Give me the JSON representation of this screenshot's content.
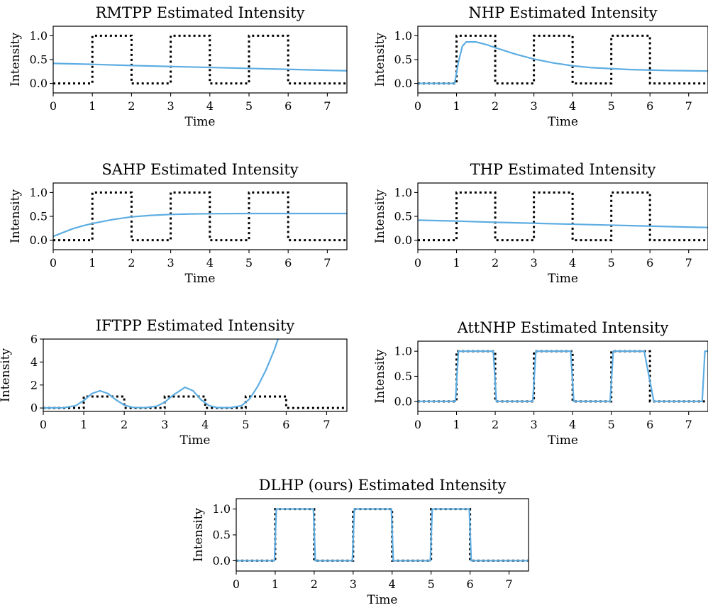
{
  "chart_data": [
    {
      "type": "line",
      "title": "RMTPP Estimated Intensity",
      "xlabel": "Time",
      "ylabel": "Intensity",
      "xlim": [
        0,
        7.5
      ],
      "ylim": [
        -0.2,
        1.2
      ],
      "xticks": [
        0,
        1,
        2,
        3,
        4,
        5,
        6,
        7
      ],
      "yticks": [
        0.0,
        0.5,
        1.0
      ],
      "ytick_labels": [
        "0.0",
        "0.5",
        "1.0"
      ],
      "grid": false,
      "series": [
        {
          "role": "ground-truth",
          "style": "dotted",
          "color": "#000000",
          "x": [
            0,
            1,
            1,
            2,
            2,
            3,
            3,
            4,
            4,
            5,
            5,
            6,
            6,
            7.5
          ],
          "y": [
            0,
            0,
            1,
            1,
            0,
            0,
            1,
            1,
            0,
            0,
            1,
            1,
            0,
            0
          ]
        },
        {
          "role": "estimated",
          "style": "solid",
          "color": "#5dade2",
          "x": [
            0,
            1,
            2,
            3,
            4,
            5,
            6,
            7,
            7.5
          ],
          "y": [
            0.42,
            0.4,
            0.375,
            0.355,
            0.335,
            0.315,
            0.295,
            0.275,
            0.265
          ]
        }
      ]
    },
    {
      "type": "line",
      "title": "NHP Estimated Intensity",
      "xlabel": "Time",
      "ylabel": "Intensity",
      "xlim": [
        0,
        7.5
      ],
      "ylim": [
        -0.2,
        1.2
      ],
      "xticks": [
        0,
        1,
        2,
        3,
        4,
        5,
        6,
        7
      ],
      "yticks": [
        0.0,
        0.5,
        1.0
      ],
      "ytick_labels": [
        "0.0",
        "0.5",
        "1.0"
      ],
      "grid": false,
      "series": [
        {
          "role": "ground-truth",
          "style": "dotted",
          "color": "#000000",
          "x": [
            0,
            1,
            1,
            2,
            2,
            3,
            3,
            4,
            4,
            5,
            5,
            6,
            6,
            7.5
          ],
          "y": [
            0,
            0,
            1,
            1,
            0,
            0,
            1,
            1,
            0,
            0,
            1,
            1,
            0,
            0
          ]
        },
        {
          "role": "estimated",
          "style": "solid",
          "color": "#5dade2",
          "x": [
            0,
            0.95,
            1.05,
            1.15,
            1.25,
            1.5,
            1.75,
            2.0,
            2.5,
            3.0,
            3.5,
            4.0,
            4.5,
            5.0,
            5.5,
            6.0,
            6.5,
            7.0,
            7.5
          ],
          "y": [
            0,
            0,
            0.45,
            0.78,
            0.87,
            0.87,
            0.82,
            0.75,
            0.62,
            0.51,
            0.43,
            0.37,
            0.33,
            0.31,
            0.29,
            0.28,
            0.27,
            0.265,
            0.26
          ]
        }
      ]
    },
    {
      "type": "line",
      "title": "SAHP Estimated Intensity",
      "xlabel": "Time",
      "ylabel": "Intensity",
      "xlim": [
        0,
        7.5
      ],
      "ylim": [
        -0.2,
        1.2
      ],
      "xticks": [
        0,
        1,
        2,
        3,
        4,
        5,
        6,
        7
      ],
      "yticks": [
        0.0,
        0.5,
        1.0
      ],
      "ytick_labels": [
        "0.0",
        "0.5",
        "1.0"
      ],
      "grid": false,
      "series": [
        {
          "role": "ground-truth",
          "style": "dotted",
          "color": "#000000",
          "x": [
            0,
            1,
            1,
            2,
            2,
            3,
            3,
            4,
            4,
            5,
            5,
            6,
            6,
            7.5
          ],
          "y": [
            0,
            0,
            1,
            1,
            0,
            0,
            1,
            1,
            0,
            0,
            1,
            1,
            0,
            0
          ]
        },
        {
          "role": "estimated",
          "style": "solid",
          "color": "#5dade2",
          "x": [
            0,
            0.25,
            0.5,
            0.75,
            1.0,
            1.5,
            2.0,
            2.5,
            3.0,
            3.5,
            4.0,
            5.0,
            6.0,
            7.0,
            7.5
          ],
          "y": [
            0.08,
            0.16,
            0.24,
            0.3,
            0.35,
            0.43,
            0.49,
            0.52,
            0.54,
            0.55,
            0.555,
            0.56,
            0.56,
            0.56,
            0.56
          ]
        }
      ]
    },
    {
      "type": "line",
      "title": "THP Estimated Intensity",
      "xlabel": "Time",
      "ylabel": "Intensity",
      "xlim": [
        0,
        7.5
      ],
      "ylim": [
        -0.2,
        1.2
      ],
      "xticks": [
        0,
        1,
        2,
        3,
        4,
        5,
        6,
        7
      ],
      "yticks": [
        0.0,
        0.5,
        1.0
      ],
      "ytick_labels": [
        "0.0",
        "0.5",
        "1.0"
      ],
      "grid": false,
      "series": [
        {
          "role": "ground-truth",
          "style": "dotted",
          "color": "#000000",
          "x": [
            0,
            1,
            1,
            2,
            2,
            3,
            3,
            4,
            4,
            5,
            5,
            6,
            6,
            7.5
          ],
          "y": [
            0,
            0,
            1,
            1,
            0,
            0,
            1,
            1,
            0,
            0,
            1,
            1,
            0,
            0
          ]
        },
        {
          "role": "estimated",
          "style": "solid",
          "color": "#5dade2",
          "x": [
            0,
            1,
            2,
            3,
            4,
            5,
            6,
            7,
            7.5
          ],
          "y": [
            0.42,
            0.4,
            0.375,
            0.355,
            0.335,
            0.315,
            0.295,
            0.275,
            0.265
          ]
        }
      ]
    },
    {
      "type": "line",
      "title": "IFTPP Estimated Intensity",
      "xlabel": "Time",
      "ylabel": "Intensity",
      "xlim": [
        0,
        7.5
      ],
      "ylim": [
        -0.3,
        6
      ],
      "xticks": [
        0,
        1,
        2,
        3,
        4,
        5,
        6,
        7
      ],
      "yticks": [
        0,
        2,
        4,
        6
      ],
      "ytick_labels": [
        "0",
        "2",
        "4",
        "6"
      ],
      "grid": false,
      "series": [
        {
          "role": "ground-truth",
          "style": "dotted",
          "color": "#000000",
          "x": [
            0,
            1,
            1,
            2,
            2,
            3,
            3,
            4,
            4,
            5,
            5,
            6,
            6,
            7.5
          ],
          "y": [
            0,
            0,
            1,
            1,
            0,
            0,
            1,
            1,
            0,
            0,
            1,
            1,
            0,
            0
          ]
        },
        {
          "role": "estimated",
          "style": "solid",
          "color": "#5dade2",
          "x": [
            0,
            0.5,
            0.8,
            1.0,
            1.2,
            1.4,
            1.6,
            1.8,
            2.0,
            2.2,
            2.5,
            2.8,
            3.0,
            3.2,
            3.5,
            3.7,
            3.9,
            4.1,
            4.3,
            4.6,
            4.9,
            5.1,
            5.3,
            5.5,
            5.7,
            5.8
          ],
          "y": [
            0,
            0.02,
            0.2,
            0.65,
            1.25,
            1.5,
            1.25,
            0.7,
            0.25,
            0.05,
            0.02,
            0.15,
            0.5,
            1.1,
            1.8,
            1.5,
            0.7,
            0.2,
            0.03,
            0.02,
            0.2,
            0.8,
            1.9,
            3.3,
            5.0,
            6.0
          ]
        }
      ]
    },
    {
      "type": "line",
      "title": "AttNHP Estimated Intensity",
      "xlabel": "Time",
      "ylabel": "Intensity",
      "xlim": [
        0,
        7.5
      ],
      "ylim": [
        -0.2,
        1.2
      ],
      "xticks": [
        0,
        1,
        2,
        3,
        4,
        5,
        6,
        7
      ],
      "yticks": [
        0.0,
        0.5,
        1.0
      ],
      "ytick_labels": [
        "0.0",
        "0.5",
        "1.0"
      ],
      "grid": false,
      "series": [
        {
          "role": "ground-truth",
          "style": "dotted",
          "color": "#000000",
          "x": [
            0,
            1,
            1,
            2,
            2,
            3,
            3,
            4,
            4,
            5,
            5,
            6,
            6,
            7.5
          ],
          "y": [
            0,
            0,
            1,
            1,
            0,
            0,
            1,
            1,
            0,
            0,
            1,
            1,
            0,
            0
          ]
        },
        {
          "role": "estimated",
          "style": "solid",
          "color": "#5dade2",
          "x": [
            0,
            0.97,
            1.05,
            1.95,
            2.03,
            2.97,
            3.05,
            3.95,
            4.03,
            4.97,
            5.05,
            5.85,
            6.1,
            7.35,
            7.42,
            7.5
          ],
          "y": [
            0,
            0,
            1,
            1,
            0,
            0,
            1,
            1,
            0,
            0,
            1,
            1,
            0,
            0,
            1,
            1
          ]
        }
      ]
    },
    {
      "type": "line",
      "title": "DLHP (ours) Estimated Intensity",
      "xlabel": "Time",
      "ylabel": "Intensity",
      "xlim": [
        0,
        7.5
      ],
      "ylim": [
        -0.2,
        1.2
      ],
      "xticks": [
        0,
        1,
        2,
        3,
        4,
        5,
        6,
        7
      ],
      "yticks": [
        0.0,
        0.5,
        1.0
      ],
      "ytick_labels": [
        "0.0",
        "0.5",
        "1.0"
      ],
      "grid": false,
      "series": [
        {
          "role": "ground-truth",
          "style": "dotted",
          "color": "#000000",
          "x": [
            0,
            1,
            1,
            2,
            2,
            3,
            3,
            4,
            4,
            5,
            5,
            6,
            6,
            7.5
          ],
          "y": [
            0,
            0,
            1,
            1,
            0,
            0,
            1,
            1,
            0,
            0,
            1,
            1,
            0,
            0
          ]
        },
        {
          "role": "estimated",
          "style": "solid",
          "color": "#5dade2",
          "x": [
            0,
            0.98,
            1.03,
            1.98,
            2.03,
            2.98,
            3.03,
            3.98,
            4.03,
            4.98,
            5.03,
            5.98,
            6.03,
            7.5
          ],
          "y": [
            0,
            0,
            1,
            1,
            0,
            0,
            1,
            1,
            0,
            0,
            1,
            1,
            0,
            0
          ]
        }
      ]
    }
  ]
}
